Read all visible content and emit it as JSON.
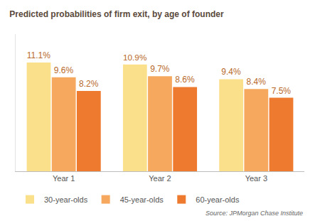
{
  "chart_data": {
    "type": "bar",
    "title": "Predicted probabilities of firm exit, by age of founder",
    "annotation": "Source: JPMorgan Chase Institute",
    "categories": [
      "Year 1",
      "Year 2",
      "Year 3"
    ],
    "series": [
      {
        "name": "30-year-olds",
        "color": "#fbe08c",
        "values": [
          11.1,
          10.9,
          9.4
        ],
        "value_labels": [
          "11.1%",
          "10.9%",
          "9.4%"
        ]
      },
      {
        "name": "45-year-olds",
        "color": "#f5a85e",
        "values": [
          9.6,
          9.7,
          8.4
        ],
        "value_labels": [
          "9.6%",
          "9.7%",
          "8.4%"
        ]
      },
      {
        "name": "60-year-olds",
        "color": "#ee7a2f",
        "values": [
          8.2,
          8.6,
          7.5
        ],
        "value_labels": [
          "8.2%",
          "8.6%",
          "7.5%"
        ]
      }
    ],
    "ylim": [
      0,
      14
    ],
    "grid": false,
    "data_labels": true,
    "tick_labels": "x",
    "legend": "bottom"
  }
}
